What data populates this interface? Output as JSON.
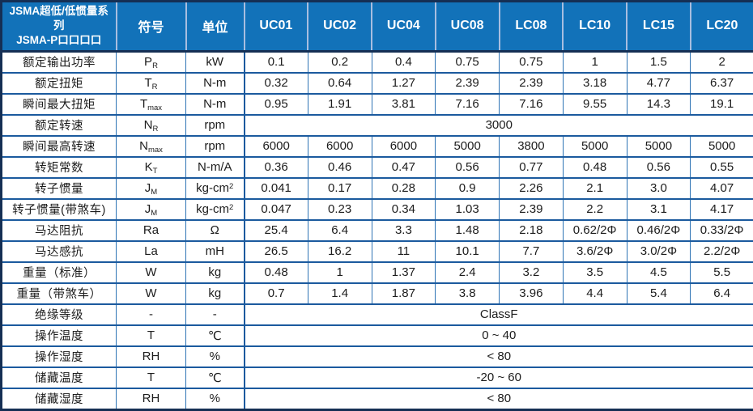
{
  "table": {
    "title_line1": "JSMA超低/低惯量系列",
    "title_line2": "JSMA-P口口口口",
    "columns": {
      "symbol": "符号",
      "unit": "单位",
      "models": [
        "UC01",
        "UC02",
        "UC04",
        "UC08",
        "LC08",
        "LC10",
        "LC15",
        "LC20"
      ]
    },
    "colors": {
      "header_bg": "#1272B9",
      "header_text": "#FFFFFF",
      "header_divider": "#A8BEE0",
      "outer_border": "#152F54",
      "row_line": "#1B5A9E",
      "column_line": "#2E74B5",
      "body_text": "#1C1C1C"
    },
    "rows": [
      {
        "label": "额定输出功率",
        "symbol_base": "P",
        "symbol_sub": "R",
        "unit": "kW",
        "values": [
          "0.1",
          "0.2",
          "0.4",
          "0.75",
          "0.75",
          "1",
          "1.5",
          "2"
        ]
      },
      {
        "label": "额定扭矩",
        "symbol_base": "T",
        "symbol_sub": "R",
        "unit": "N-m",
        "values": [
          "0.32",
          "0.64",
          "1.27",
          "2.39",
          "2.39",
          "3.18",
          "4.77",
          "6.37"
        ]
      },
      {
        "label": "瞬间最大扭矩",
        "symbol_base": "T",
        "symbol_sub": "max",
        "unit": "N-m",
        "values": [
          "0.95",
          "1.91",
          "3.81",
          "7.16",
          "7.16",
          "9.55",
          "14.3",
          "19.1"
        ]
      },
      {
        "label": "额定转速",
        "symbol_base": "N",
        "symbol_sub": "R",
        "unit": "rpm",
        "span_value": "3000"
      },
      {
        "label": "瞬间最高转速",
        "symbol_base": "N",
        "symbol_sub": "max",
        "unit": "rpm",
        "values": [
          "6000",
          "6000",
          "6000",
          "5000",
          "3800",
          "5000",
          "5000",
          "5000"
        ]
      },
      {
        "label": "转矩常数",
        "symbol_base": "K",
        "symbol_sub": "T",
        "unit": "N-m/A",
        "values": [
          "0.36",
          "0.46",
          "0.47",
          "0.56",
          "0.77",
          "0.48",
          "0.56",
          "0.55"
        ]
      },
      {
        "label": "转子惯量",
        "symbol_base": "J",
        "symbol_sub": "M",
        "unit": "kg-cm",
        "unit_sup": "2",
        "values": [
          "0.041",
          "0.17",
          "0.28",
          "0.9",
          "2.26",
          "2.1",
          "3.0",
          "4.07"
        ]
      },
      {
        "label": "转子惯量(带煞车)",
        "symbol_base": "J",
        "symbol_sub": "M",
        "unit": "kg-cm",
        "unit_sup": "2",
        "values": [
          "0.047",
          "0.23",
          "0.34",
          "1.03",
          "2.39",
          "2.2",
          "3.1",
          "4.17"
        ]
      },
      {
        "label": "马达阻抗",
        "symbol_base": "Ra",
        "symbol_sub": "",
        "unit": "Ω",
        "values": [
          "25.4",
          "6.4",
          "3.3",
          "1.48",
          "2.18",
          "0.62/2Φ",
          "0.46/2Φ",
          "0.33/2Φ"
        ]
      },
      {
        "label": "马达感抗",
        "symbol_base": "La",
        "symbol_sub": "",
        "unit": "mH",
        "values": [
          "26.5",
          "16.2",
          "11",
          "10.1",
          "7.7",
          "3.6/2Φ",
          "3.0/2Φ",
          "2.2/2Φ"
        ]
      },
      {
        "label": "重量（标准）",
        "symbol_base": "W",
        "symbol_sub": "",
        "unit": "kg",
        "values": [
          "0.48",
          "1",
          "1.37",
          "2.4",
          "3.2",
          "3.5",
          "4.5",
          "5.5"
        ]
      },
      {
        "label": "重量（带煞车）",
        "symbol_base": "W",
        "symbol_sub": "",
        "unit": "kg",
        "values": [
          "0.7",
          "1.4",
          "1.87",
          "3.8",
          "3.96",
          "4.4",
          "5.4",
          "6.4"
        ]
      },
      {
        "label": "绝缘等级",
        "symbol_base": "-",
        "symbol_sub": "",
        "unit": "-",
        "span_value": "ClassF"
      },
      {
        "label": "操作温度",
        "symbol_base": "T",
        "symbol_sub": "",
        "unit": "℃",
        "span_value": "0 ~ 40"
      },
      {
        "label": "操作湿度",
        "symbol_base": "RH",
        "symbol_sub": "",
        "unit": "%",
        "span_value": "< 80"
      },
      {
        "label": "储藏温度",
        "symbol_base": "T",
        "symbol_sub": "",
        "unit": "℃",
        "span_value": "-20 ~ 60"
      },
      {
        "label": "储藏湿度",
        "symbol_base": "RH",
        "symbol_sub": "",
        "unit": "%",
        "span_value": "< 80"
      }
    ]
  }
}
